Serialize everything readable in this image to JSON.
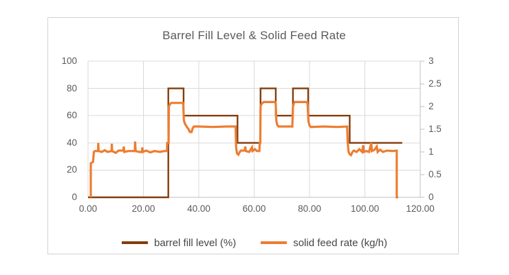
{
  "chart_data": {
    "type": "line",
    "title": "Barrel Fill Level & Solid Feed Rate",
    "grid": true,
    "legend_position": "bottom",
    "x_axis": {
      "min": 0,
      "max": 120,
      "tick_values": [
        0,
        20,
        40,
        60,
        80,
        100,
        120
      ],
      "tick_labels": [
        "0.00",
        "20.00",
        "40.00",
        "60.00",
        "80.00",
        "100.00",
        "120.00"
      ]
    },
    "y_axis_left": {
      "min": 0,
      "max": 100,
      "tick_values": [
        0,
        20,
        40,
        60,
        80,
        100
      ],
      "tick_labels": [
        "0",
        "20",
        "40",
        "60",
        "80",
        "100"
      ]
    },
    "y_axis_right": {
      "min": 0,
      "max": 3,
      "tick_values": [
        0,
        0.5,
        1,
        1.5,
        2,
        2.5,
        3
      ],
      "tick_labels": [
        "0",
        "0.5",
        "1",
        "1.5",
        "2",
        "2.5",
        "3"
      ]
    },
    "colors": {
      "grid": "#d9d9d9",
      "axis_line": "#bfbfbf",
      "tick_label": "#595959",
      "title": "#595959",
      "legend_text": "#454545"
    },
    "series": [
      {
        "name": "barrel fill level (%)",
        "axis": "left",
        "color": "#843C0C",
        "points": [
          [
            0,
            0
          ],
          [
            29,
            0
          ],
          [
            29,
            80
          ],
          [
            34.5,
            80
          ],
          [
            34.5,
            60
          ],
          [
            54,
            60
          ],
          [
            54,
            40
          ],
          [
            62.3,
            40
          ],
          [
            62.3,
            80
          ],
          [
            67.8,
            80
          ],
          [
            67.8,
            60
          ],
          [
            74,
            60
          ],
          [
            74,
            80
          ],
          [
            79.5,
            80
          ],
          [
            79.5,
            60
          ],
          [
            94.5,
            60
          ],
          [
            94.5,
            40
          ],
          [
            113.5,
            40
          ]
        ]
      },
      {
        "name": "solid feed rate (kg/h)",
        "axis": "right",
        "color": "#ED7D31",
        "points": [
          [
            1,
            0
          ],
          [
            1,
            0.75
          ],
          [
            1.8,
            0.78
          ],
          [
            2.1,
            1.0
          ],
          [
            2.5,
            1.02
          ],
          [
            3.6,
            1.02
          ],
          [
            3.7,
            1.2
          ],
          [
            3.8,
            1.02
          ],
          [
            5,
            1.0
          ],
          [
            6,
            1.04
          ],
          [
            7,
            1.0
          ],
          [
            8.5,
            1.02
          ],
          [
            8.6,
            1.18
          ],
          [
            8.7,
            1.02
          ],
          [
            10,
            0.98
          ],
          [
            11,
            1.03
          ],
          [
            12.8,
            1.03
          ],
          [
            12.9,
            1.12
          ],
          [
            13.1,
            1.0
          ],
          [
            14.5,
            1.02
          ],
          [
            16.9,
            1.02
          ],
          [
            17,
            1.23
          ],
          [
            17.2,
            1.02
          ],
          [
            18.5,
            1.0
          ],
          [
            19.5,
            1.0
          ],
          [
            19.6,
            1.1
          ],
          [
            19.8,
            1.0
          ],
          [
            21,
            1.03
          ],
          [
            22.5,
            0.99
          ],
          [
            24,
            1.02
          ],
          [
            26,
            1.0
          ],
          [
            27.5,
            1.02
          ],
          [
            28.5,
            1.02
          ],
          [
            28.6,
            1.2
          ],
          [
            29.1,
            1.2
          ],
          [
            29.2,
            2.0
          ],
          [
            29.6,
            2.05
          ],
          [
            30,
            2.08
          ],
          [
            34.3,
            2.08
          ],
          [
            34.4,
            2.02
          ],
          [
            34.6,
            1.7
          ],
          [
            35,
            1.62
          ],
          [
            35.6,
            1.56
          ],
          [
            36.3,
            1.5
          ],
          [
            36.8,
            1.44
          ],
          [
            37.4,
            1.44
          ],
          [
            37.8,
            1.52
          ],
          [
            38.2,
            1.56
          ],
          [
            40,
            1.56
          ],
          [
            45,
            1.55
          ],
          [
            50,
            1.56
          ],
          [
            53.3,
            1.56
          ],
          [
            53.5,
            1.1
          ],
          [
            53.8,
            0.97
          ],
          [
            54.3,
            0.94
          ],
          [
            54.8,
            1.0
          ],
          [
            55.2,
            1.03
          ],
          [
            56.6,
            1.03
          ],
          [
            56.8,
            1.12
          ],
          [
            57,
            1.02
          ],
          [
            58.2,
            1.0
          ],
          [
            59.2,
            1.1
          ],
          [
            59.4,
            1.02
          ],
          [
            60.3,
            1.06
          ],
          [
            61,
            1.02
          ],
          [
            61.9,
            1.02
          ],
          [
            62,
            1.2
          ],
          [
            62.2,
            1.2
          ],
          [
            62.3,
            2.0
          ],
          [
            62.6,
            2.05
          ],
          [
            63,
            2.08
          ],
          [
            63.5,
            2.1
          ],
          [
            67.6,
            2.1
          ],
          [
            67.8,
            2.05
          ],
          [
            68,
            1.7
          ],
          [
            68.3,
            1.6
          ],
          [
            68.8,
            1.56
          ],
          [
            73.8,
            1.56
          ],
          [
            74,
            2.0
          ],
          [
            74.3,
            2.06
          ],
          [
            74.6,
            2.1
          ],
          [
            79.1,
            2.1
          ],
          [
            79.3,
            2.05
          ],
          [
            79.6,
            1.68
          ],
          [
            80,
            1.58
          ],
          [
            80.5,
            1.55
          ],
          [
            85,
            1.56
          ],
          [
            90,
            1.55
          ],
          [
            93.6,
            1.56
          ],
          [
            93.8,
            1.2
          ],
          [
            94.1,
            1.0
          ],
          [
            94.5,
            0.95
          ],
          [
            95,
            0.93
          ],
          [
            95.5,
            1.0
          ],
          [
            96,
            1.03
          ],
          [
            97,
            1.0
          ],
          [
            98,
            1.06
          ],
          [
            99,
            1.0
          ],
          [
            99.4,
            1.15
          ],
          [
            99.6,
            1.0
          ],
          [
            100.5,
            1.02
          ],
          [
            101.5,
            1.0
          ],
          [
            102.3,
            1.2
          ],
          [
            102.5,
            1.02
          ],
          [
            103.5,
            1.05
          ],
          [
            104.3,
            1.12
          ],
          [
            104.6,
            1.0
          ],
          [
            105.5,
            1.05
          ],
          [
            106.5,
            1.0
          ],
          [
            108,
            1.03
          ],
          [
            110,
            1.02
          ],
          [
            111.5,
            1.03
          ],
          [
            111.5,
            0
          ],
          [
            112,
            0
          ]
        ]
      }
    ]
  }
}
